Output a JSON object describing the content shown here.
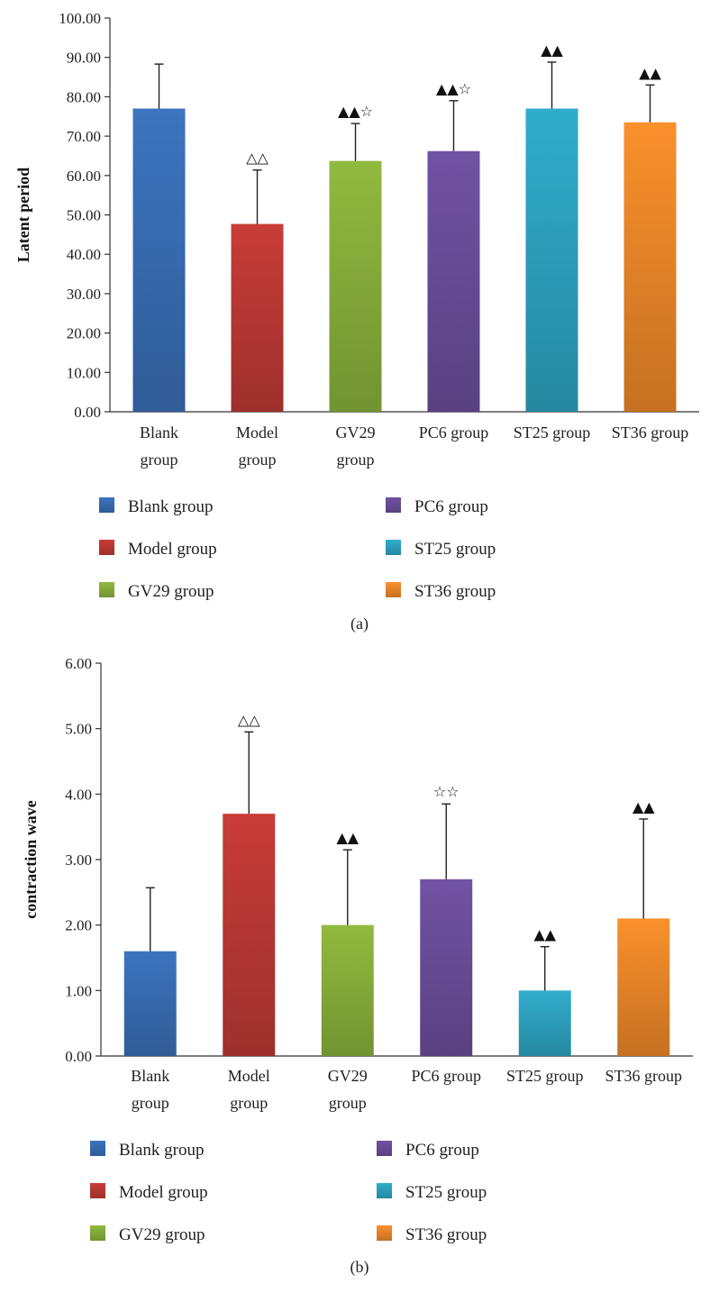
{
  "chart_data": [
    {
      "type": "bar",
      "panel_label": "(a)",
      "ylabel": "Latent period",
      "ylim": [
        0,
        100
      ],
      "yticks": [
        "0.00",
        "10.00",
        "20.00",
        "30.00",
        "40.00",
        "50.00",
        "60.00",
        "70.00",
        "80.00",
        "90.00",
        "100.00"
      ],
      "categories": [
        {
          "name": "Blank group",
          "lines": [
            "Blank",
            "group"
          ]
        },
        {
          "name": "Model group",
          "lines": [
            "Model",
            "group"
          ]
        },
        {
          "name": "GV29 group",
          "lines": [
            "GV29",
            "group"
          ]
        },
        {
          "name": "PC6 group",
          "lines": [
            "PC6 group"
          ]
        },
        {
          "name": "ST25 group",
          "lines": [
            "ST25 group"
          ]
        },
        {
          "name": "ST36 group",
          "lines": [
            "ST36 group"
          ]
        }
      ],
      "values": [
        77,
        47.7,
        63.7,
        66.2,
        77,
        73.5
      ],
      "errors": [
        11.3,
        13.7,
        9.5,
        12.8,
        11.8,
        9.5
      ],
      "significance": [
        "",
        "△△",
        "▲▲☆",
        "▲▲☆",
        "▲▲",
        "▲▲"
      ],
      "colors": [
        "#3a70b8",
        "#c03a36",
        "#8bb33d",
        "#6d4f9d",
        "#2ea6c4",
        "#f08a2a"
      ],
      "legend": [
        "Blank group",
        "PC6 group",
        "Model group",
        "ST25 group",
        "GV29 group",
        "ST36 group"
      ]
    },
    {
      "type": "bar",
      "panel_label": "(b)",
      "ylabel": "contraction wave",
      "ylim": [
        0,
        6
      ],
      "yticks": [
        "0.00",
        "1.00",
        "2.00",
        "3.00",
        "4.00",
        "5.00",
        "6.00"
      ],
      "categories": [
        {
          "name": "Blank group",
          "lines": [
            "Blank",
            "group"
          ]
        },
        {
          "name": "Model group",
          "lines": [
            "Model",
            "group"
          ]
        },
        {
          "name": "GV29 group",
          "lines": [
            "GV29",
            "group"
          ]
        },
        {
          "name": "PC6 group",
          "lines": [
            "PC6 group"
          ]
        },
        {
          "name": "ST25 group",
          "lines": [
            "ST25 group"
          ]
        },
        {
          "name": "ST36 group",
          "lines": [
            "ST36 group"
          ]
        }
      ],
      "values": [
        1.6,
        3.7,
        2.0,
        2.7,
        1.0,
        2.1
      ],
      "errors": [
        0.97,
        1.25,
        1.15,
        1.15,
        0.67,
        1.52
      ],
      "significance": [
        "",
        "△△",
        "▲▲",
        "☆☆",
        "▲▲",
        "▲▲"
      ],
      "colors": [
        "#3a70b8",
        "#c03a36",
        "#8bb33d",
        "#6d4f9d",
        "#2ea6c4",
        "#f08a2a"
      ],
      "legend": [
        "Blank group",
        "PC6 group",
        "Model group",
        "ST25 group",
        "GV29 group",
        "ST36 group"
      ]
    }
  ]
}
